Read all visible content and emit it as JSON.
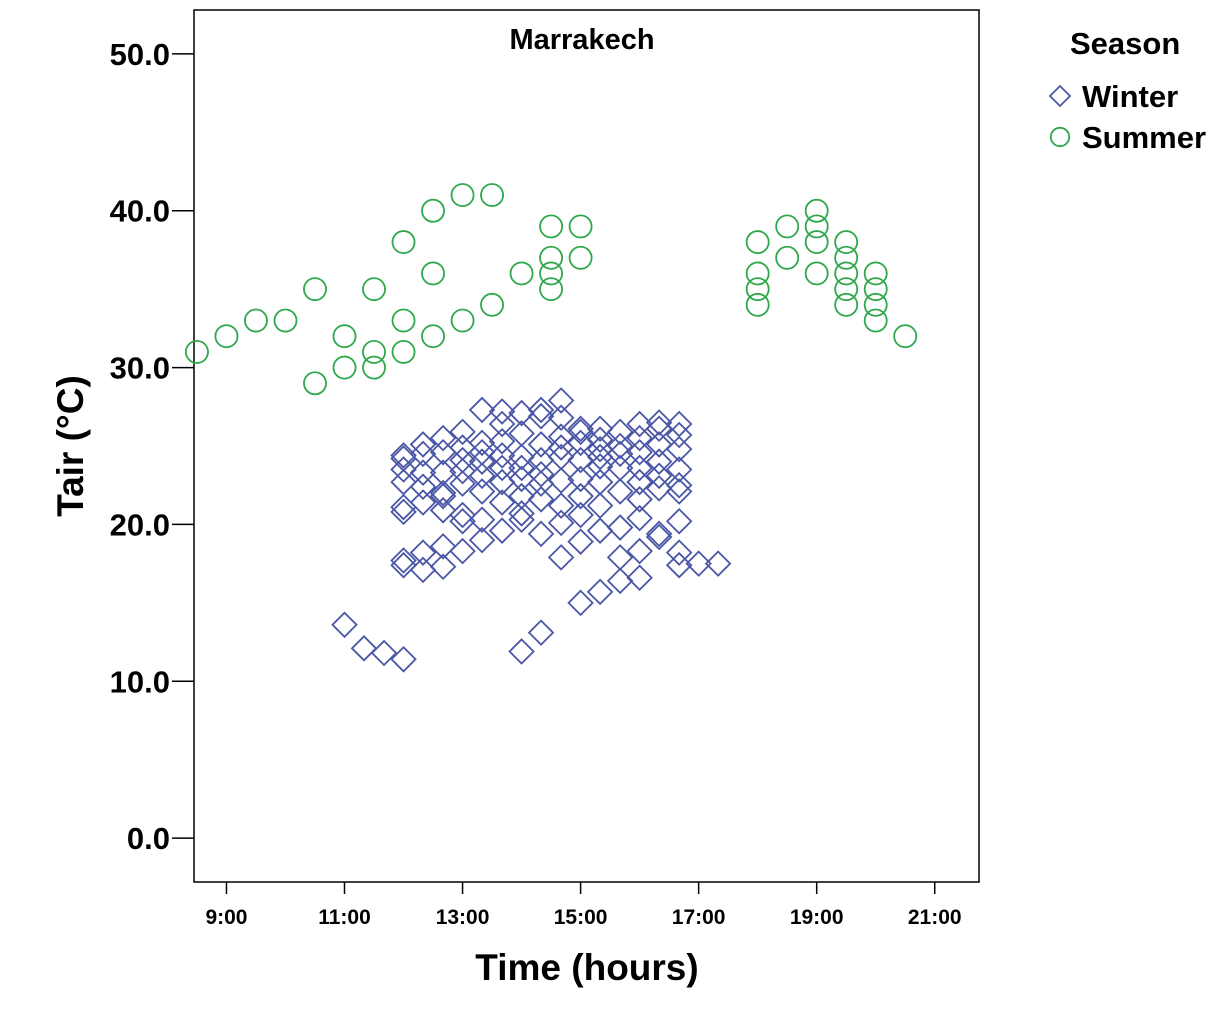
{
  "chart_data": {
    "type": "scatter",
    "title": "Marrakech",
    "xlabel": "Time (hours)",
    "ylabel": "Tair (°C)",
    "xlim": [
      8.45,
      21.75
    ],
    "ylim": [
      -2.8,
      52.8
    ],
    "x_ticks": [
      9,
      11,
      13,
      15,
      17,
      19,
      21
    ],
    "x_tick_labels": [
      "9:00",
      "11:00",
      "13:00",
      "15:00",
      "17:00",
      "19:00",
      "21:00"
    ],
    "y_ticks": [
      0,
      10,
      20,
      30,
      40,
      50
    ],
    "y_tick_labels": [
      "0.0",
      "10.0",
      "20.0",
      "30.0",
      "40.0",
      "50.0"
    ],
    "legend": {
      "title": "Season",
      "position": "right",
      "entries": [
        {
          "label": "Winter",
          "marker": "diamond",
          "color": "#4a56a6"
        },
        {
          "label": "Summer",
          "marker": "circle",
          "color": "#2ea84a"
        }
      ]
    },
    "series": [
      {
        "name": "Winter",
        "marker": "diamond",
        "color": "#4a56a6",
        "points": [
          [
            11.0,
            13.6
          ],
          [
            11.33,
            12.1
          ],
          [
            11.67,
            11.8
          ],
          [
            12.0,
            11.4
          ],
          [
            14.0,
            11.9
          ],
          [
            14.33,
            13.1
          ],
          [
            15.0,
            15.0
          ],
          [
            15.33,
            15.7
          ],
          [
            15.67,
            16.4
          ],
          [
            16.0,
            16.6
          ],
          [
            16.67,
            17.4
          ],
          [
            17.0,
            17.5
          ],
          [
            17.33,
            17.5
          ],
          [
            12.0,
            17.4
          ],
          [
            12.0,
            17.7
          ],
          [
            12.33,
            17.1
          ],
          [
            12.33,
            18.2
          ],
          [
            12.67,
            17.3
          ],
          [
            12.67,
            18.6
          ],
          [
            13.0,
            18.3
          ],
          [
            13.33,
            19.0
          ],
          [
            13.67,
            19.6
          ],
          [
            14.0,
            20.3
          ],
          [
            14.33,
            19.4
          ],
          [
            14.67,
            17.9
          ],
          [
            14.67,
            20.1
          ],
          [
            15.0,
            18.9
          ],
          [
            15.0,
            20.6
          ],
          [
            15.33,
            19.6
          ],
          [
            15.33,
            21.2
          ],
          [
            15.67,
            17.9
          ],
          [
            15.67,
            19.8
          ],
          [
            16.0,
            18.3
          ],
          [
            16.0,
            20.4
          ],
          [
            16.33,
            19.2
          ],
          [
            16.33,
            19.4
          ],
          [
            16.67,
            20.2
          ],
          [
            16.67,
            18.2
          ],
          [
            12.0,
            20.8
          ],
          [
            12.0,
            21.1
          ],
          [
            12.0,
            22.7
          ],
          [
            12.0,
            24.2
          ],
          [
            12.0,
            24.4
          ],
          [
            12.0,
            23.5
          ],
          [
            12.33,
            21.4
          ],
          [
            12.33,
            22.4
          ],
          [
            12.33,
            23.3
          ],
          [
            12.33,
            24.5
          ],
          [
            12.33,
            25.1
          ],
          [
            12.67,
            20.9
          ],
          [
            12.67,
            21.8
          ],
          [
            12.67,
            22.0
          ],
          [
            12.67,
            23.3
          ],
          [
            12.67,
            24.6
          ],
          [
            12.67,
            25.5
          ],
          [
            13.0,
            20.2
          ],
          [
            13.0,
            20.6
          ],
          [
            13.0,
            22.6
          ],
          [
            13.0,
            23.4
          ],
          [
            13.0,
            24.1
          ],
          [
            13.0,
            24.9
          ],
          [
            13.0,
            25.9
          ],
          [
            13.33,
            20.3
          ],
          [
            13.33,
            22.1
          ],
          [
            13.33,
            23.1
          ],
          [
            13.33,
            24.0
          ],
          [
            13.33,
            24.6
          ],
          [
            13.33,
            25.2
          ],
          [
            13.33,
            27.3
          ],
          [
            13.67,
            21.4
          ],
          [
            13.67,
            22.7
          ],
          [
            13.67,
            23.6
          ],
          [
            13.67,
            24.4
          ],
          [
            13.67,
            25.3
          ],
          [
            13.67,
            26.4
          ],
          [
            13.67,
            27.2
          ],
          [
            14.0,
            20.7
          ],
          [
            14.0,
            21.8
          ],
          [
            14.0,
            22.9
          ],
          [
            14.0,
            23.6
          ],
          [
            14.0,
            24.3
          ],
          [
            14.0,
            25.8
          ],
          [
            14.0,
            27.1
          ],
          [
            14.33,
            21.6
          ],
          [
            14.33,
            22.6
          ],
          [
            14.33,
            23.2
          ],
          [
            14.33,
            24.1
          ],
          [
            14.33,
            25.1
          ],
          [
            14.33,
            26.9
          ],
          [
            14.33,
            27.3
          ],
          [
            14.67,
            21.2
          ],
          [
            14.67,
            22.8
          ],
          [
            14.67,
            24.3
          ],
          [
            14.67,
            24.9
          ],
          [
            14.67,
            25.6
          ],
          [
            14.67,
            26.8
          ],
          [
            14.67,
            27.9
          ],
          [
            15.0,
            21.8
          ],
          [
            15.0,
            22.9
          ],
          [
            15.0,
            24.1
          ],
          [
            15.0,
            25.2
          ],
          [
            15.0,
            25.9
          ],
          [
            15.0,
            26.1
          ],
          [
            15.33,
            22.7
          ],
          [
            15.33,
            23.7
          ],
          [
            15.33,
            24.3
          ],
          [
            15.33,
            24.8
          ],
          [
            15.33,
            25.4
          ],
          [
            15.33,
            26.1
          ],
          [
            15.67,
            22.1
          ],
          [
            15.67,
            23.6
          ],
          [
            15.67,
            24.5
          ],
          [
            15.67,
            25.0
          ],
          [
            15.67,
            25.9
          ],
          [
            16.0,
            21.6
          ],
          [
            16.0,
            22.7
          ],
          [
            16.0,
            23.6
          ],
          [
            16.0,
            24.6
          ],
          [
            16.0,
            25.5
          ],
          [
            16.0,
            26.4
          ],
          [
            16.33,
            22.3
          ],
          [
            16.33,
            23.1
          ],
          [
            16.33,
            24.0
          ],
          [
            16.33,
            25.1
          ],
          [
            16.33,
            26.1
          ],
          [
            16.33,
            26.5
          ],
          [
            16.67,
            22.1
          ],
          [
            16.67,
            22.5
          ],
          [
            16.67,
            23.5
          ],
          [
            16.67,
            24.8
          ],
          [
            16.67,
            25.7
          ],
          [
            16.67,
            26.4
          ]
        ]
      },
      {
        "name": "Summer",
        "marker": "circle",
        "color": "#2ea84a",
        "points": [
          [
            8.5,
            31
          ],
          [
            9.0,
            32
          ],
          [
            9.5,
            33
          ],
          [
            10.0,
            33
          ],
          [
            10.5,
            35
          ],
          [
            10.5,
            29
          ],
          [
            11.0,
            32
          ],
          [
            11.0,
            30
          ],
          [
            11.5,
            35
          ],
          [
            11.5,
            31
          ],
          [
            11.5,
            30
          ],
          [
            12.0,
            38
          ],
          [
            12.0,
            33
          ],
          [
            12.0,
            31
          ],
          [
            12.5,
            40
          ],
          [
            12.5,
            36
          ],
          [
            12.5,
            32
          ],
          [
            13.0,
            41
          ],
          [
            13.0,
            33
          ],
          [
            13.5,
            41
          ],
          [
            13.5,
            34
          ],
          [
            14.0,
            36
          ],
          [
            14.5,
            39
          ],
          [
            14.5,
            37
          ],
          [
            14.5,
            36
          ],
          [
            14.5,
            35
          ],
          [
            15.0,
            39
          ],
          [
            15.0,
            37
          ],
          [
            18.0,
            38
          ],
          [
            18.0,
            36
          ],
          [
            18.0,
            35
          ],
          [
            18.0,
            34
          ],
          [
            18.5,
            39
          ],
          [
            18.5,
            37
          ],
          [
            19.0,
            40
          ],
          [
            19.0,
            39
          ],
          [
            19.0,
            38
          ],
          [
            19.0,
            36
          ],
          [
            19.5,
            38
          ],
          [
            19.5,
            37
          ],
          [
            19.5,
            36
          ],
          [
            19.5,
            35
          ],
          [
            19.5,
            34
          ],
          [
            20.0,
            36
          ],
          [
            20.0,
            35
          ],
          [
            20.0,
            34
          ],
          [
            20.0,
            33
          ],
          [
            20.5,
            32
          ]
        ]
      }
    ]
  }
}
